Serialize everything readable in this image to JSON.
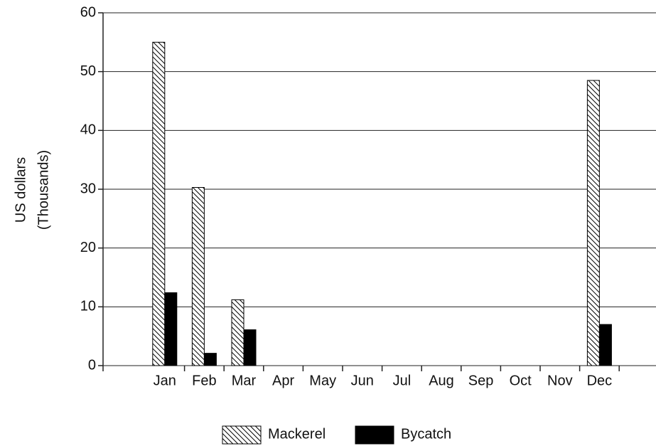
{
  "chart_data": {
    "type": "bar",
    "ylabel": [
      "US dollars",
      "(Thousands)"
    ],
    "categories": [
      "Jan",
      "Feb",
      "Mar",
      "Apr",
      "May",
      "Jun",
      "Jul",
      "Aug",
      "Sep",
      "Oct",
      "Nov",
      "Dec"
    ],
    "series": [
      {
        "name": "Mackerel",
        "color": "#000000",
        "pattern": "hatch",
        "values": [
          55,
          30.3,
          11.2,
          0,
          0,
          0,
          0,
          0,
          0,
          0,
          0,
          48.5
        ]
      },
      {
        "name": "Bycatch",
        "color": "#000000",
        "pattern": "solid",
        "values": [
          12.4,
          2.1,
          6.1,
          0,
          0,
          0,
          0,
          0,
          0,
          0,
          0,
          7.0
        ]
      }
    ],
    "ylim": [
      0,
      60
    ],
    "yticks": [
      0,
      10,
      20,
      30,
      40,
      50,
      60
    ],
    "grid": true,
    "legend": "bottom"
  }
}
